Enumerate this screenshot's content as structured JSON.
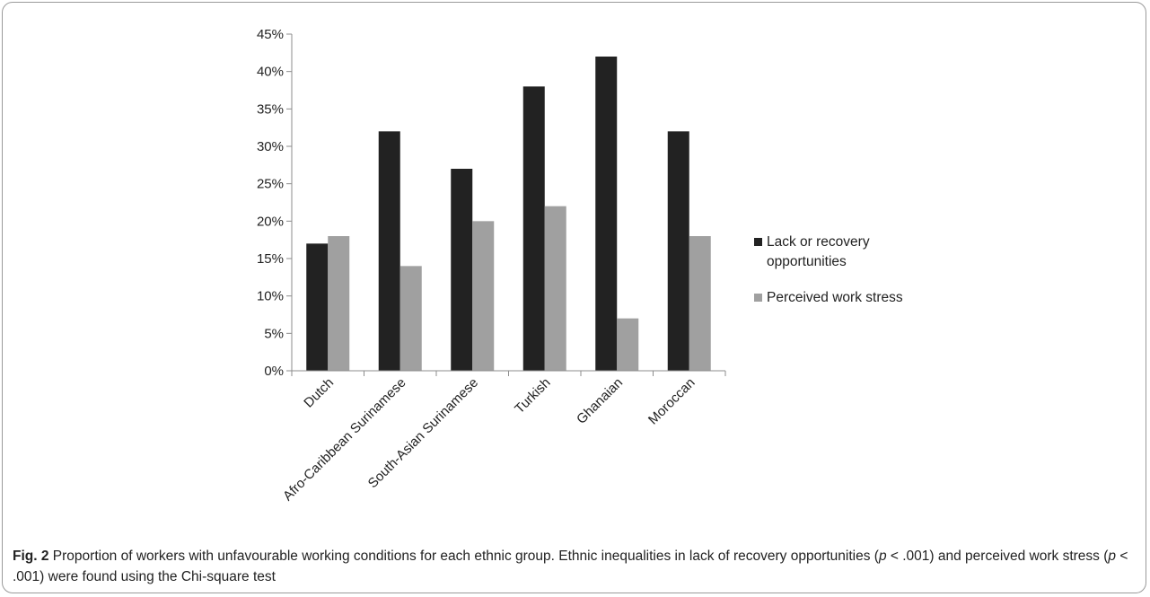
{
  "chart_data": {
    "type": "bar",
    "title": "",
    "xlabel": "",
    "ylabel": "",
    "categories": [
      "Dutch",
      "Afro-Caribbean Surinamese",
      "South-Asian Surinamese",
      "Turkish",
      "Ghanaian",
      "Moroccan"
    ],
    "series": [
      {
        "name": "Lack or recovery opportunities",
        "color": "#222222",
        "values": [
          17,
          32,
          27,
          38,
          42,
          32
        ]
      },
      {
        "name": "Perceived work stress",
        "color": "#a0a0a0",
        "values": [
          18,
          14,
          20,
          22,
          7,
          18
        ]
      }
    ],
    "ylim": [
      0,
      45
    ],
    "yticks": [
      "0%",
      "5%",
      "10%",
      "15%",
      "20%",
      "25%",
      "30%",
      "35%",
      "40%",
      "45%"
    ],
    "grid": false,
    "legend": "right"
  },
  "caption": {
    "label": "Fig. 2",
    "part1": " Proportion of workers with unfavourable working conditions for each ethnic group. Ethnic inequalities in lack of recovery opportunities (",
    "p1": "p",
    "part2": " < .001) and perceived work stress (",
    "p2": "p",
    "part3": " < .001) were found using the Chi-square test"
  }
}
